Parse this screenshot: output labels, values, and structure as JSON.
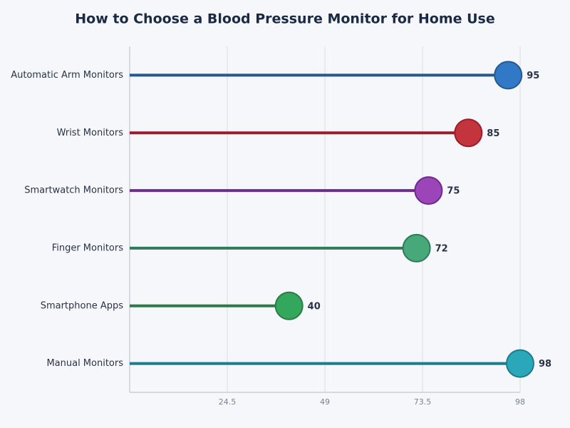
{
  "chart_data": {
    "type": "lollipop",
    "orientation": "horizontal",
    "title": "How to Choose a Blood Pressure Monitor for Home Use",
    "categories": [
      "Automatic Arm Monitors",
      "Wrist Monitors",
      "Smartwatch Monitors",
      "Finger Monitors",
      "Smartphone Apps",
      "Manual Monitors"
    ],
    "values": [
      95,
      85,
      75,
      72,
      40,
      98
    ],
    "colors": [
      "#3178c6",
      "#c4343c",
      "#9b45b8",
      "#47a97a",
      "#33a85c",
      "#2aa7b8"
    ],
    "line_colors": [
      "#265a8e",
      "#9b1c2a",
      "#6a2d8a",
      "#2e7a5a",
      "#2e7a45",
      "#1f7a8a"
    ],
    "xlim": [
      0,
      98
    ],
    "xticks": [
      24.5,
      49,
      73.5,
      98
    ],
    "grid": true
  }
}
